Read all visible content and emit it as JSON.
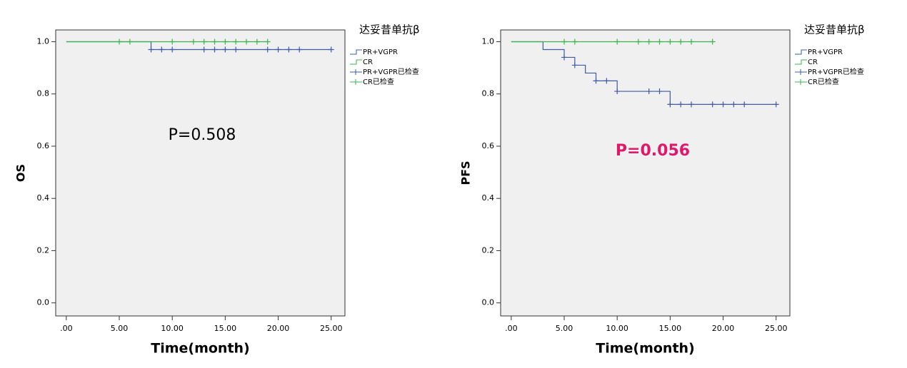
{
  "chart_data": [
    {
      "type": "km",
      "legend_title": "达妥昔单抗β",
      "ylabel": "OS",
      "xlabel": "Time(month)",
      "annotation": "P=0.508",
      "annotation_color": "#000000",
      "xlim": [
        -1,
        26.3
      ],
      "ylim": [
        -0.05,
        1.045
      ],
      "xticks": [
        {
          "value": 0,
          "label": ".00"
        },
        {
          "value": 5,
          "label": "5.00"
        },
        {
          "value": 10,
          "label": "10.00"
        },
        {
          "value": 15,
          "label": "15.00"
        },
        {
          "value": 20,
          "label": "20.00"
        },
        {
          "value": 25,
          "label": "25.00"
        }
      ],
      "yticks": [
        {
          "value": 0,
          "label": "0.0"
        },
        0.2,
        0.4,
        0.6,
        0.8,
        {
          "value": 1,
          "label": "1.0"
        }
      ],
      "series": [
        {
          "name": "PR+VGPR",
          "kind": "step",
          "color": "#3e5ba8",
          "x": [
            0,
            8,
            25
          ],
          "values": [
            1,
            0.97,
            0.97
          ]
        },
        {
          "name": "CR",
          "kind": "step",
          "color": "#3cb44b",
          "x": [
            0,
            19
          ],
          "values": [
            1,
            1
          ]
        },
        {
          "name": "PR+VGPR已检查",
          "kind": "censor",
          "color": "#3e5ba8",
          "x": [
            8,
            9,
            10,
            13,
            14,
            15,
            16,
            19,
            20,
            21,
            22,
            25
          ],
          "values": [
            0.97,
            0.97,
            0.97,
            0.97,
            0.97,
            0.97,
            0.97,
            0.97,
            0.97,
            0.97,
            0.97,
            0.97
          ]
        },
        {
          "name": "CR已检查",
          "kind": "censor",
          "color": "#3cb44b",
          "x": [
            5,
            6,
            10,
            12,
            13,
            14,
            15,
            16,
            17,
            18,
            19
          ],
          "values": [
            1,
            1,
            1,
            1,
            1,
            1,
            1,
            1,
            1,
            1,
            1
          ]
        }
      ]
    },
    {
      "type": "km",
      "legend_title": "达妥昔单抗β",
      "ylabel": "PFS",
      "xlabel": "Time(month)",
      "annotation": "P=0.056",
      "annotation_color": "#e0186c",
      "xlim": [
        -1,
        26.3
      ],
      "ylim": [
        -0.05,
        1.045
      ],
      "xticks": [
        {
          "value": 0,
          "label": ".00"
        },
        {
          "value": 5,
          "label": "5.00"
        },
        {
          "value": 10,
          "label": "10.00"
        },
        {
          "value": 15,
          "label": "15.00"
        },
        {
          "value": 20,
          "label": "20.00"
        },
        {
          "value": 25,
          "label": "25.00"
        }
      ],
      "yticks": [
        {
          "value": 0,
          "label": "0.0"
        },
        0.2,
        0.4,
        0.6,
        0.8,
        {
          "value": 1,
          "label": "1.0"
        }
      ],
      "series": [
        {
          "name": "PR+VGPR",
          "kind": "step",
          "color": "#3e5ba8",
          "x": [
            0,
            3,
            5,
            6,
            7,
            8,
            10,
            15,
            25
          ],
          "values": [
            1,
            0.97,
            0.94,
            0.91,
            0.88,
            0.85,
            0.81,
            0.76,
            0.76
          ]
        },
        {
          "name": "CR",
          "kind": "step",
          "color": "#3cb44b",
          "x": [
            0,
            19
          ],
          "values": [
            1,
            1
          ]
        },
        {
          "name": "PR+VGPR已检查",
          "kind": "censor",
          "color": "#3e5ba8",
          "x": [
            5,
            6,
            8,
            9,
            10,
            13,
            14,
            15,
            16,
            17,
            19,
            20,
            21,
            22,
            25
          ],
          "values": [
            0.94,
            0.91,
            0.85,
            0.85,
            0.81,
            0.81,
            0.81,
            0.76,
            0.76,
            0.76,
            0.76,
            0.76,
            0.76,
            0.76,
            0.76
          ]
        },
        {
          "name": "CR已检查",
          "kind": "censor",
          "color": "#3cb44b",
          "x": [
            5,
            6,
            10,
            12,
            13,
            14,
            15,
            16,
            17,
            19
          ],
          "values": [
            1,
            1,
            1,
            1,
            1,
            1,
            1,
            1,
            1,
            1
          ]
        }
      ]
    }
  ]
}
